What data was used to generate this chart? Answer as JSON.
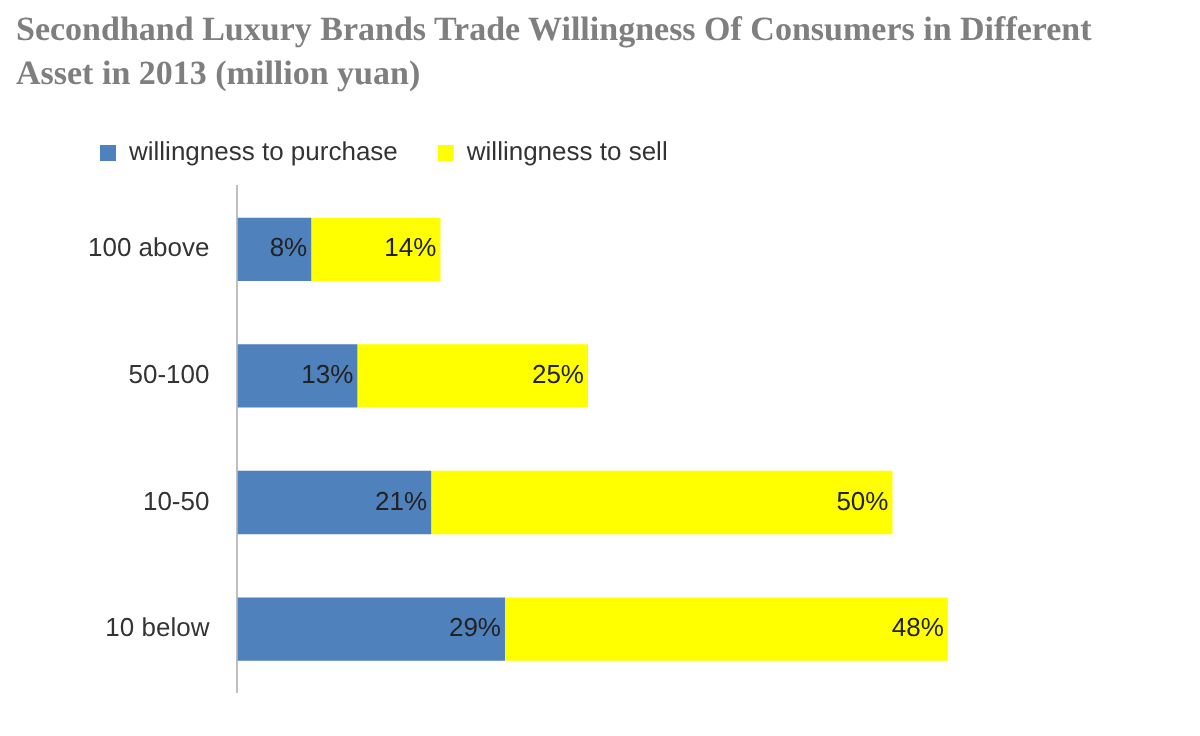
{
  "chart_data": {
    "type": "bar",
    "orientation": "horizontal",
    "stacked": true,
    "title": "Secondhand Luxury Brands Trade Willingness Of Consumers in Different Asset in 2013 (million yuan)",
    "categories": [
      "100 above",
      "50-100",
      "10-50",
      "10 below"
    ],
    "series": [
      {
        "name": "willingness to purchase",
        "color": "#4f81bd",
        "values": [
          8,
          13,
          21,
          29
        ],
        "value_labels": [
          "8%",
          "13%",
          "21%",
          "29%"
        ]
      },
      {
        "name": "willingness to sell",
        "color": "#ffff00",
        "values": [
          14,
          25,
          50,
          48
        ],
        "value_labels": [
          "14%",
          "25%",
          "50%",
          "48%"
        ]
      }
    ],
    "legend": "top",
    "grid": false
  }
}
